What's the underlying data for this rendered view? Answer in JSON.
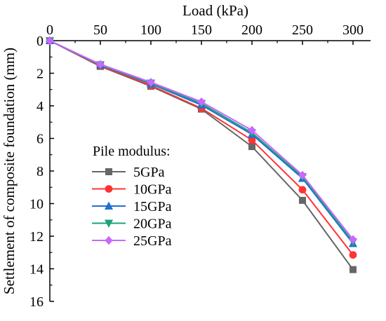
{
  "chart_data": {
    "type": "line",
    "title": "",
    "xlabel": "Load (kPa)",
    "ylabel": "Settlement of composite foundation (mm)",
    "x_axis_position": "top",
    "y_axis_inverted": true,
    "xlim": [
      0,
      300
    ],
    "ylim": [
      0,
      16
    ],
    "x": [
      0,
      50,
      100,
      150,
      200,
      250,
      300
    ],
    "x_ticks": [
      "0",
      "50",
      "100",
      "150",
      "200",
      "250",
      "300"
    ],
    "y_ticks": [
      "0",
      "2",
      "4",
      "6",
      "8",
      "10",
      "12",
      "14",
      "16"
    ],
    "grid": false,
    "legend_title": "Pile modulus:",
    "legend_position": "bottom-left",
    "series": [
      {
        "name": "5GPa",
        "marker": "square",
        "color": "#666666",
        "values": [
          0,
          1.58,
          2.8,
          4.2,
          6.5,
          9.8,
          14.05
        ]
      },
      {
        "name": "10GPa",
        "marker": "circle",
        "color": "#ff3333",
        "values": [
          0,
          1.55,
          2.75,
          4.15,
          6.1,
          9.15,
          13.15
        ]
      },
      {
        "name": "15GPa",
        "marker": "triangle-up",
        "color": "#1f6fd6",
        "values": [
          0,
          1.5,
          2.65,
          3.95,
          5.75,
          8.45,
          12.45
        ]
      },
      {
        "name": "20GPa",
        "marker": "triangle-down",
        "color": "#1aa37a",
        "values": [
          0,
          1.48,
          2.6,
          3.85,
          5.65,
          8.35,
          12.35
        ]
      },
      {
        "name": "25GPa",
        "marker": "diamond",
        "color": "#cc66ff",
        "values": [
          0,
          1.45,
          2.55,
          3.75,
          5.5,
          8.25,
          12.2
        ]
      }
    ]
  }
}
